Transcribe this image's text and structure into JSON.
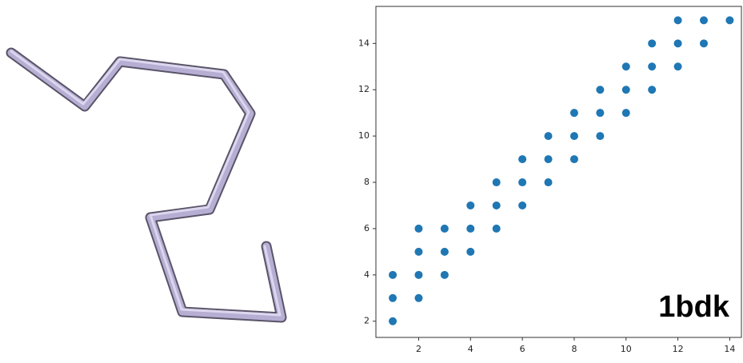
{
  "chart_data": {
    "type": "scatter",
    "annotation": "1bdk",
    "color": "#1f77b4",
    "x": [
      1,
      1,
      1,
      2,
      2,
      2,
      2,
      3,
      3,
      3,
      4,
      4,
      4,
      5,
      5,
      5,
      6,
      6,
      6,
      7,
      7,
      7,
      8,
      8,
      8,
      9,
      9,
      9,
      10,
      10,
      10,
      11,
      11,
      11,
      12,
      12,
      12,
      13,
      13,
      14
    ],
    "values": [
      2,
      3,
      4,
      3,
      4,
      5,
      6,
      4,
      5,
      6,
      5,
      6,
      7,
      6,
      7,
      8,
      7,
      8,
      9,
      8,
      9,
      10,
      9,
      10,
      11,
      10,
      11,
      12,
      11,
      12,
      13,
      12,
      13,
      14,
      13,
      14,
      15,
      14,
      15,
      15
    ],
    "xlim": [
      0.35,
      14.45
    ],
    "xticks": [
      2,
      4,
      6,
      8,
      10,
      12,
      14
    ],
    "ylim": [
      1.3,
      15.6
    ],
    "yticks": [
      2,
      4,
      6,
      8,
      10,
      12,
      14
    ]
  }
}
